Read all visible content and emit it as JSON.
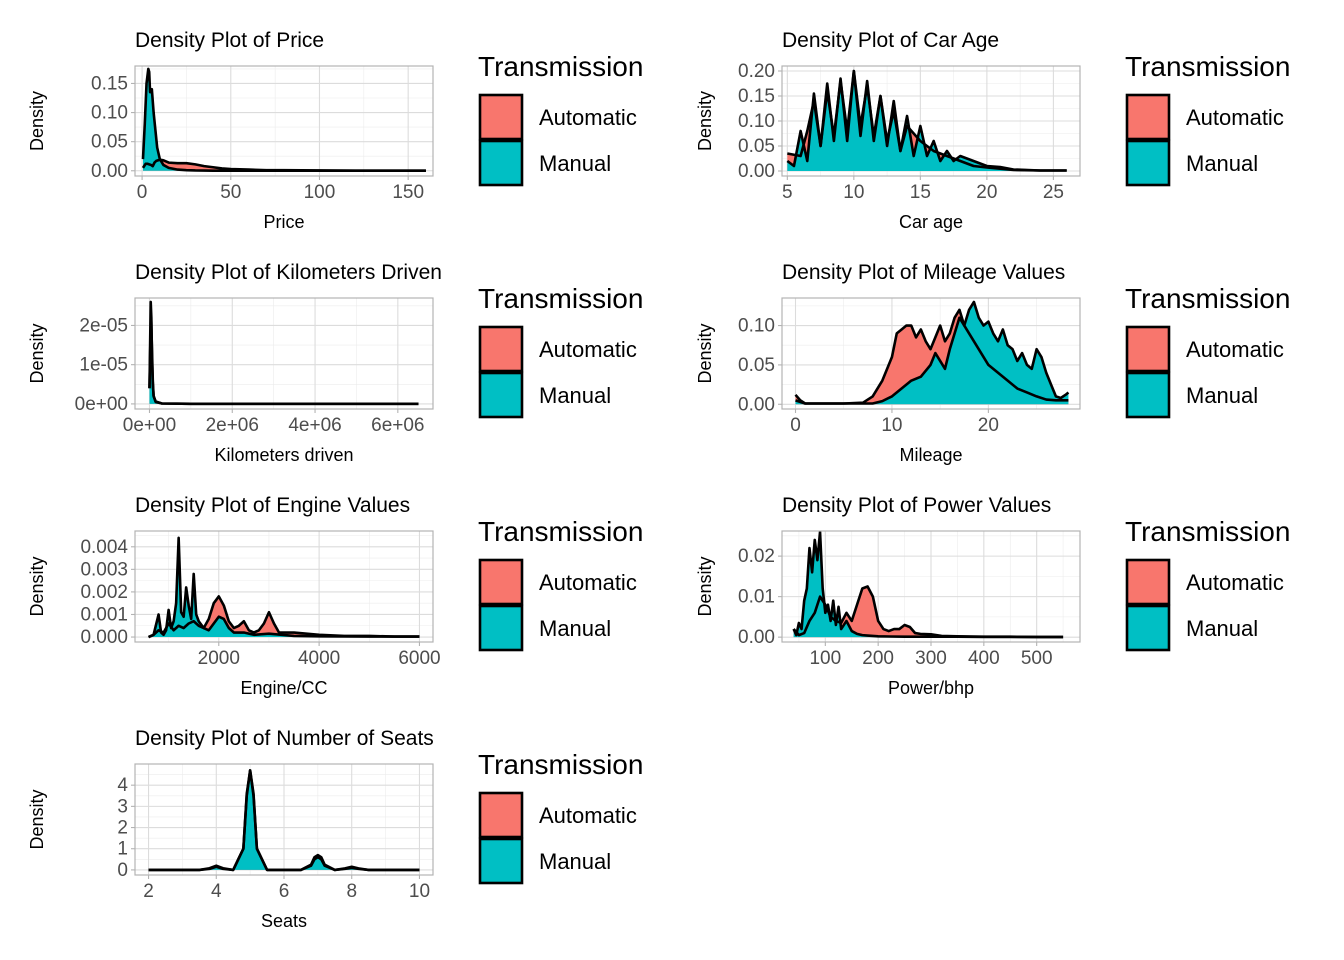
{
  "legend": {
    "title": "Transmission",
    "items": [
      {
        "label": "Automatic",
        "color": "#F8766D"
      },
      {
        "label": "Manual",
        "color": "#00BFC4"
      }
    ]
  },
  "chart_data": [
    {
      "type": "area",
      "title": "Density Plot of Price",
      "xlabel": "Price",
      "ylabel": "Density",
      "xlim": [
        -4,
        164
      ],
      "ylim": [
        -0.009,
        0.18
      ],
      "xticks": [
        0,
        50,
        100,
        150
      ],
      "xtick_labels": [
        "0",
        "50",
        "100",
        "150"
      ],
      "yticks": [
        0,
        0.05,
        0.1,
        0.15
      ],
      "ytick_labels": [
        "0.00",
        "0.05",
        "0.10",
        "0.15"
      ],
      "series": [
        {
          "name": "Automatic",
          "x": [
            0.5,
            2,
            3,
            4,
            5,
            6,
            7,
            8,
            10,
            12,
            15,
            20,
            25,
            30,
            35,
            40,
            45,
            50,
            60,
            70,
            80,
            100,
            120,
            140,
            160
          ],
          "values": [
            0.005,
            0.012,
            0.012,
            0.011,
            0.01,
            0.008,
            0.014,
            0.017,
            0.019,
            0.018,
            0.014,
            0.013,
            0.013,
            0.011,
            0.008,
            0.006,
            0.004,
            0.003,
            0.002,
            0.001,
            0.001,
            0.0005,
            0.0002,
            0.0001,
            0.0001
          ]
        },
        {
          "name": "Manual",
          "x": [
            0.5,
            1.5,
            2.5,
            3.5,
            4,
            4.5,
            5.5,
            6.5,
            7.5,
            8.5,
            10,
            12,
            15,
            20,
            25,
            30,
            40,
            60,
            100,
            160
          ],
          "values": [
            0.02,
            0.08,
            0.15,
            0.175,
            0.17,
            0.135,
            0.14,
            0.1,
            0.07,
            0.04,
            0.02,
            0.01,
            0.005,
            0.002,
            0.001,
            0.0005,
            0.0002,
            0.0001,
            0.0001,
            0.0001
          ]
        }
      ]
    },
    {
      "type": "area",
      "title": "Density Plot of Car Age",
      "xlabel": "Car age",
      "ylabel": "Density",
      "xlim": [
        4.6,
        27
      ],
      "ylim": [
        -0.01,
        0.21
      ],
      "xticks": [
        5,
        10,
        15,
        20,
        25
      ],
      "xtick_labels": [
        "5",
        "10",
        "15",
        "20",
        "25"
      ],
      "yticks": [
        0,
        0.05,
        0.1,
        0.15,
        0.2
      ],
      "ytick_labels": [
        "0.00",
        "0.05",
        "0.10",
        "0.15",
        "0.20"
      ],
      "series": [
        {
          "name": "Automatic",
          "x": [
            5,
            6,
            6.5,
            7,
            7.5,
            8,
            8.5,
            9,
            9.5,
            10,
            10.5,
            11,
            11.5,
            12,
            12.5,
            13,
            13.5,
            14,
            15,
            16,
            17,
            18,
            19,
            20,
            22,
            24,
            26
          ],
          "values": [
            0.035,
            0.03,
            0.08,
            0.14,
            0.05,
            0.16,
            0.07,
            0.18,
            0.08,
            0.2,
            0.09,
            0.17,
            0.07,
            0.15,
            0.06,
            0.12,
            0.04,
            0.09,
            0.06,
            0.04,
            0.03,
            0.02,
            0.01,
            0.007,
            0.002,
            0.001,
            0.001
          ]
        },
        {
          "name": "Manual",
          "x": [
            5,
            5.5,
            6,
            6.5,
            7,
            7.5,
            8,
            8.5,
            9,
            9.5,
            10,
            10.5,
            11,
            11.5,
            12,
            12.5,
            13,
            13.5,
            14,
            14.5,
            15,
            15.5,
            16,
            16.5,
            17,
            17.5,
            18,
            19,
            20,
            21,
            22,
            24,
            26
          ],
          "values": [
            0.02,
            0.01,
            0.08,
            0.02,
            0.155,
            0.05,
            0.175,
            0.06,
            0.185,
            0.06,
            0.2,
            0.07,
            0.18,
            0.06,
            0.15,
            0.05,
            0.14,
            0.04,
            0.11,
            0.03,
            0.09,
            0.03,
            0.06,
            0.02,
            0.04,
            0.02,
            0.03,
            0.02,
            0.01,
            0.008,
            0.003,
            0.001,
            0.001
          ]
        }
      ]
    },
    {
      "type": "area",
      "title": "Density Plot of Kilometers Driven",
      "xlabel": "Kilometers driven",
      "ylabel": "Density",
      "xlim": [
        -350000,
        6850000
      ],
      "ylim": [
        -1.3e-06,
        2.7e-05
      ],
      "xticks": [
        0,
        2000000,
        4000000,
        6000000
      ],
      "xtick_labels": [
        "0e+00",
        "2e+06",
        "4e+06",
        "6e+06"
      ],
      "yticks": [
        0,
        1e-05,
        2e-05
      ],
      "ytick_labels": [
        "0e+00",
        "1e-05",
        "2e-05"
      ],
      "series": [
        {
          "name": "Automatic",
          "x": [
            0,
            20000,
            40000,
            60000,
            80000,
            100000,
            150000,
            300000,
            1000000,
            6500000
          ],
          "values": [
            4e-06,
            1.5e-05,
            2.2e-05,
            1.4e-05,
            6e-06,
            2e-06,
            5e-07,
            1e-07,
            2e-08,
            1e-08
          ]
        },
        {
          "name": "Manual",
          "x": [
            0,
            15000,
            30000,
            45000,
            60000,
            80000,
            100000,
            150000,
            300000,
            1000000,
            6500000
          ],
          "values": [
            4e-06,
            1.5e-05,
            2.6e-05,
            2.2e-05,
            1.2e-05,
            5e-06,
            2e-06,
            6e-07,
            1e-07,
            2e-08,
            1e-08
          ]
        }
      ]
    },
    {
      "type": "area",
      "title": "Density Plot of Mileage Values",
      "xlabel": "Mileage",
      "ylabel": "Density",
      "xlim": [
        -1.4,
        29.5
      ],
      "ylim": [
        -0.006,
        0.135
      ],
      "xticks": [
        0,
        10,
        20
      ],
      "xtick_labels": [
        "0",
        "10",
        "20"
      ],
      "yticks": [
        0,
        0.05,
        0.1
      ],
      "ytick_labels": [
        "0.00",
        "0.05",
        "0.10"
      ],
      "series": [
        {
          "name": "Automatic",
          "x": [
            0,
            0.5,
            1,
            3,
            5,
            7,
            8,
            9,
            10,
            10.5,
            11,
            11.5,
            12,
            12.5,
            13,
            13.5,
            14,
            14.5,
            15,
            15.5,
            16,
            16.5,
            17,
            17.5,
            18,
            18.5,
            19,
            19.5,
            20,
            21,
            22,
            23,
            24,
            25,
            26,
            27,
            28.3
          ],
          "values": [
            0.012,
            0.005,
            0.001,
            0.001,
            0.001,
            0.002,
            0.01,
            0.03,
            0.06,
            0.09,
            0.095,
            0.1,
            0.1,
            0.085,
            0.095,
            0.08,
            0.07,
            0.085,
            0.1,
            0.08,
            0.09,
            0.11,
            0.12,
            0.1,
            0.09,
            0.08,
            0.07,
            0.06,
            0.05,
            0.04,
            0.03,
            0.02,
            0.015,
            0.01,
            0.006,
            0.005,
            0.005
          ]
        },
        {
          "name": "Manual",
          "x": [
            0,
            1,
            5,
            8,
            9,
            10,
            11,
            12,
            13,
            14,
            14.5,
            15,
            15.5,
            16,
            16.5,
            17,
            17.5,
            18,
            18.5,
            19,
            19.5,
            20,
            20.5,
            21,
            21.5,
            22,
            22.5,
            23,
            23.5,
            24,
            24.5,
            25,
            25.5,
            26,
            26.5,
            27,
            27.5,
            28,
            28.3
          ],
          "values": [
            0.005,
            0.001,
            0.001,
            0.001,
            0.004,
            0.01,
            0.02,
            0.03,
            0.035,
            0.05,
            0.065,
            0.055,
            0.045,
            0.07,
            0.09,
            0.11,
            0.1,
            0.12,
            0.13,
            0.11,
            0.1,
            0.105,
            0.09,
            0.08,
            0.095,
            0.075,
            0.07,
            0.055,
            0.065,
            0.05,
            0.045,
            0.07,
            0.06,
            0.04,
            0.025,
            0.01,
            0.008,
            0.012,
            0.015
          ]
        }
      ]
    },
    {
      "type": "area",
      "title": "Density Plot of Engine Values",
      "xlabel": "Engine/CC",
      "ylabel": "Density",
      "xlim": [
        330,
        6270
      ],
      "ylim": [
        -0.00022,
        0.0047
      ],
      "xticks": [
        2000,
        4000,
        6000
      ],
      "xtick_labels": [
        "2000",
        "4000",
        "6000"
      ],
      "yticks": [
        0,
        0.001,
        0.002,
        0.003,
        0.004
      ],
      "ytick_labels": [
        "0.000",
        "0.001",
        "0.002",
        "0.003",
        "0.004"
      ],
      "series": [
        {
          "name": "Automatic",
          "x": [
            600,
            700,
            800,
            900,
            1000,
            1100,
            1200,
            1300,
            1400,
            1500,
            1600,
            1700,
            1800,
            1900,
            2000,
            2100,
            2200,
            2300,
            2400,
            2500,
            2600,
            2700,
            2800,
            2900,
            3000,
            3100,
            3200,
            3500,
            4000,
            4500,
            5000,
            5500,
            6000
          ],
          "values": [
            0.0,
            0.0001,
            0.0003,
            0.0002,
            0.0006,
            0.0003,
            0.0005,
            0.0004,
            0.0006,
            0.0007,
            0.0005,
            0.0004,
            0.0008,
            0.0015,
            0.0018,
            0.0014,
            0.0007,
            0.0004,
            0.0005,
            0.0007,
            0.0003,
            0.0002,
            0.0003,
            0.0006,
            0.0011,
            0.0006,
            0.0002,
            0.0002,
            0.0001,
            5e-05,
            5e-05,
            2e-05,
            2e-05
          ]
        },
        {
          "name": "Manual",
          "x": [
            600,
            700,
            800,
            850,
            900,
            950,
            1000,
            1050,
            1100,
            1150,
            1200,
            1250,
            1300,
            1350,
            1400,
            1450,
            1500,
            1550,
            1600,
            1700,
            1800,
            1900,
            2000,
            2100,
            2200,
            2300,
            2500,
            2700,
            3000,
            3500,
            4000,
            5000,
            6000
          ],
          "values": [
            0.0,
            0.0001,
            0.001,
            0.0002,
            0.0001,
            0.0003,
            0.0012,
            0.0004,
            0.0007,
            0.0015,
            0.0044,
            0.0011,
            0.0009,
            0.0022,
            0.0014,
            0.0008,
            0.0028,
            0.001,
            0.0007,
            0.0004,
            0.0003,
            0.0006,
            0.0009,
            0.0008,
            0.0004,
            0.0002,
            0.0002,
            0.0001,
            0.00015,
            5e-05,
            3e-05,
            2e-05,
            2e-05
          ]
        }
      ]
    },
    {
      "type": "area",
      "title": "Density Plot of Power Values",
      "xlabel": "Power/bhp",
      "ylabel": "Density",
      "xlim": [
        18,
        582
      ],
      "ylim": [
        -0.0012,
        0.0262
      ],
      "xticks": [
        100,
        200,
        300,
        400,
        500
      ],
      "xtick_labels": [
        "100",
        "200",
        "300",
        "400",
        "500"
      ],
      "yticks": [
        0,
        0.01,
        0.02
      ],
      "ytick_labels": [
        "0.00",
        "0.01",
        "0.02"
      ],
      "series": [
        {
          "name": "Automatic",
          "x": [
            40,
            50,
            60,
            70,
            80,
            90,
            100,
            110,
            120,
            130,
            140,
            150,
            160,
            170,
            180,
            190,
            200,
            210,
            220,
            230,
            240,
            250,
            260,
            270,
            280,
            300,
            320,
            350,
            400,
            450,
            500,
            550
          ],
          "values": [
            0.002,
            0.0005,
            0.001,
            0.004,
            0.006,
            0.01,
            0.008,
            0.005,
            0.004,
            0.0035,
            0.006,
            0.004,
            0.008,
            0.012,
            0.0125,
            0.01,
            0.004,
            0.002,
            0.0015,
            0.002,
            0.002,
            0.003,
            0.0025,
            0.001,
            0.0008,
            0.0007,
            0.0003,
            0.0002,
            0.0001,
            0.0001,
            5e-05,
            5e-05
          ]
        },
        {
          "name": "Manual",
          "x": [
            40,
            45,
            50,
            55,
            60,
            65,
            70,
            75,
            80,
            85,
            90,
            95,
            100,
            105,
            110,
            115,
            120,
            125,
            130,
            140,
            150,
            160,
            170,
            180,
            200,
            250,
            300,
            350,
            400,
            450,
            500,
            550
          ],
          "values": [
            0.002,
            0.0005,
            0.0035,
            0.002,
            0.009,
            0.012,
            0.022,
            0.016,
            0.024,
            0.019,
            0.026,
            0.012,
            0.006,
            0.008,
            0.004,
            0.009,
            0.003,
            0.0075,
            0.002,
            0.004,
            0.0015,
            0.0008,
            0.0005,
            0.0004,
            0.0002,
            0.0001,
            0.0001,
            0.0001,
            5e-05,
            5e-05,
            2e-05,
            2e-05
          ]
        }
      ]
    },
    {
      "type": "area",
      "title": "Density Plot of Number of Seats",
      "xlabel": "Seats",
      "ylabel": "Density",
      "xlim": [
        1.6,
        10.4
      ],
      "ylim": [
        -0.24,
        5.0
      ],
      "xticks": [
        2,
        4,
        6,
        8,
        10
      ],
      "xtick_labels": [
        "2",
        "4",
        "6",
        "8",
        "10"
      ],
      "yticks": [
        0,
        1,
        2,
        3,
        4
      ],
      "ytick_labels": [
        "0",
        "1",
        "2",
        "3",
        "4"
      ],
      "series": [
        {
          "name": "Automatic",
          "x": [
            2,
            3.5,
            3.8,
            4,
            4.2,
            4.5,
            4.8,
            4.9,
            5,
            5.1,
            5.2,
            5.5,
            6,
            6.5,
            6.8,
            6.9,
            7,
            7.1,
            7.2,
            7.5,
            7.8,
            8,
            8.2,
            8.5,
            10
          ],
          "values": [
            0.0,
            0.0,
            0.05,
            0.15,
            0.05,
            0.0,
            1.0,
            3.5,
            4.7,
            3.5,
            1.0,
            0.0,
            0.0,
            0.0,
            0.2,
            0.5,
            0.6,
            0.5,
            0.2,
            0.0,
            0.05,
            0.1,
            0.05,
            0.0,
            0.0
          ]
        },
        {
          "name": "Manual",
          "x": [
            2,
            3.5,
            3.8,
            4,
            4.2,
            4.5,
            4.8,
            4.9,
            5,
            5.1,
            5.2,
            5.5,
            6,
            6.5,
            6.8,
            6.9,
            7,
            7.1,
            7.2,
            7.5,
            7.8,
            8,
            8.2,
            8.5,
            10
          ],
          "values": [
            0.0,
            0.0,
            0.08,
            0.2,
            0.08,
            0.0,
            1.0,
            3.6,
            4.7,
            3.6,
            1.0,
            0.0,
            0.0,
            0.0,
            0.25,
            0.6,
            0.7,
            0.6,
            0.25,
            0.0,
            0.07,
            0.15,
            0.07,
            0.0,
            0.0
          ]
        }
      ]
    }
  ]
}
